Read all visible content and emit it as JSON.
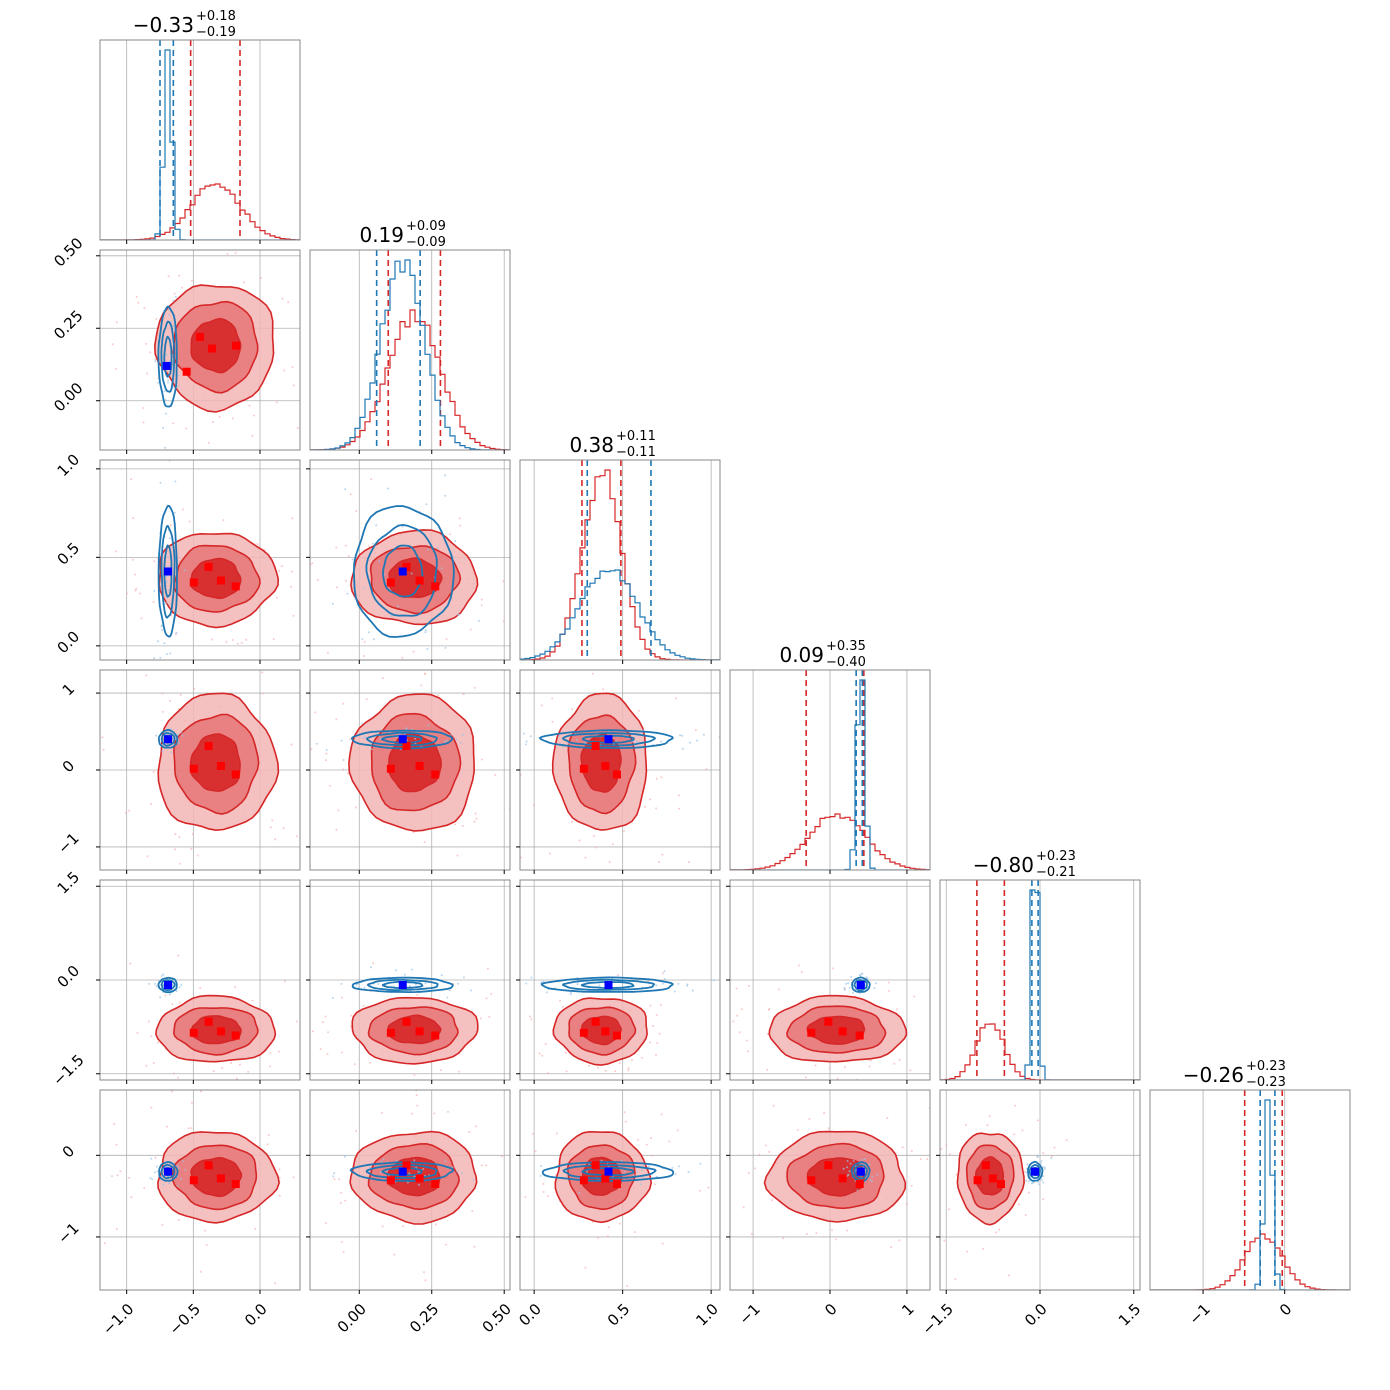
{
  "chart_data": {
    "type": "corner",
    "n_params": 6,
    "colors": {
      "red": "#d62728",
      "blue": "#1f77b4",
      "red_marker": "#ff0000",
      "blue_marker": "#0000ff",
      "grid": "#b0b0b0",
      "frame": "#888888"
    },
    "panel_titles": [
      {
        "main": "−0.33",
        "plus": "+0.18",
        "minus": "−0.19"
      },
      {
        "main": "0.19",
        "plus": "+0.09",
        "minus": "−0.09"
      },
      {
        "main": "0.38",
        "plus": "+0.11",
        "minus": "−0.11"
      },
      {
        "main": "0.09",
        "plus": "+0.35",
        "minus": "−0.40"
      },
      {
        "main": "−0.80",
        "plus": "+0.23",
        "minus": "−0.21"
      },
      {
        "main": "−0.26",
        "plus": "+0.23",
        "minus": "−0.23"
      }
    ],
    "params": [
      {
        "range": [
          -1.2,
          0.3
        ],
        "ticks": [
          -1.0,
          -0.5,
          0.0
        ],
        "tick_labels": [
          "−1.0",
          "−0.5",
          "0.0"
        ]
      },
      {
        "range": [
          -0.17,
          0.52
        ],
        "ticks": [
          0.0,
          0.25,
          0.5
        ],
        "tick_labels": [
          "0.00",
          "0.25",
          "0.50"
        ]
      },
      {
        "range": [
          -0.08,
          1.05
        ],
        "ticks": [
          0.0,
          0.5,
          1.0
        ],
        "tick_labels": [
          "0.0",
          "0.5",
          "1.0"
        ]
      },
      {
        "range": [
          -1.3,
          1.3
        ],
        "ticks": [
          -1,
          0,
          1
        ],
        "tick_labels": [
          "−1",
          "0",
          "1"
        ]
      },
      {
        "range": [
          -1.6,
          1.6
        ],
        "ticks": [
          -1.5,
          0.0,
          1.5
        ],
        "tick_labels": [
          "−1.5",
          "0.0",
          "1.5"
        ]
      },
      {
        "range": [
          -1.65,
          0.8
        ],
        "ticks": [
          -1,
          0
        ],
        "tick_labels": [
          "−1",
          "0"
        ]
      }
    ],
    "series": [
      {
        "color_key": "red",
        "center": [
          -0.33,
          0.19,
          0.38,
          0.09,
          -0.8,
          -0.26
        ],
        "sigma": [
          0.185,
          0.09,
          0.11,
          0.37,
          0.22,
          0.23
        ],
        "quantiles": [
          [
            -0.52,
            -0.15
          ],
          [
            0.1,
            0.28
          ],
          [
            0.27,
            0.49
          ],
          [
            -0.31,
            0.44
          ],
          [
            -1.01,
            -0.57
          ],
          [
            -0.49,
            -0.03
          ]
        ]
      },
      {
        "color_key": "blue",
        "center": [
          -0.69,
          0.15,
          0.42,
          0.4,
          -0.08,
          -0.2
        ],
        "sigma": [
          0.03,
          0.075,
          0.16,
          0.05,
          0.05,
          0.05
        ],
        "quantiles": [
          [
            -0.75,
            -0.65
          ],
          [
            0.06,
            0.21
          ],
          [
            0.3,
            0.66
          ],
          [
            0.34,
            0.42
          ],
          [
            -0.13,
            -0.03
          ],
          [
            -0.3,
            -0.12
          ]
        ]
      }
    ],
    "red_markers": [
      [
        -0.55,
        0.1
      ],
      [
        -0.45,
        0.22
      ],
      [
        -0.36,
        0.18
      ],
      [
        -0.18,
        0.19
      ]
    ],
    "blue_markers": [
      [
        -0.7,
        0.12
      ]
    ]
  }
}
